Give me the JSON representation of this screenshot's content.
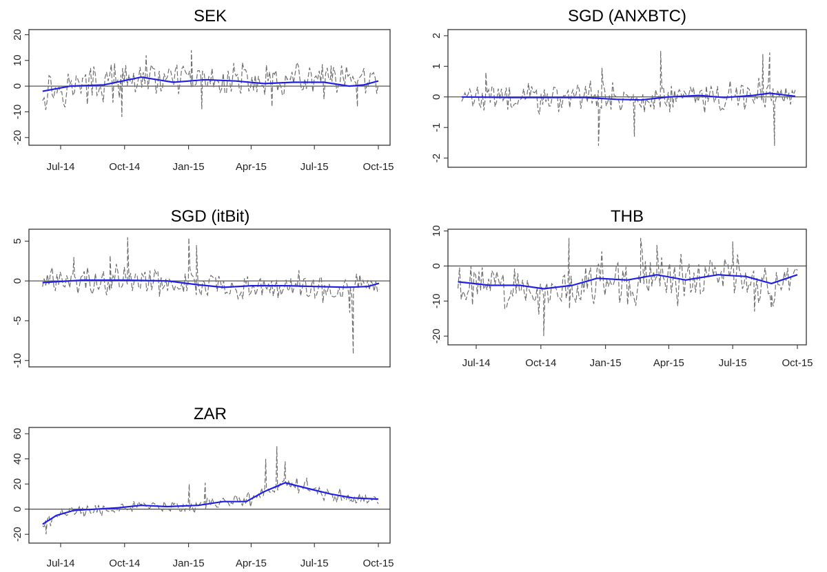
{
  "colors": {
    "raw_series": "#6e6e6e",
    "smoothed_series": "#1f1fe6",
    "zero_line": "#555555"
  },
  "chart_data": [
    {
      "type": "line",
      "title": "SEK",
      "x_ticks": [
        "Jul-14",
        "Oct-14",
        "Jan-15",
        "Apr-15",
        "Jul-15",
        "Oct-15"
      ],
      "y_ticks": [
        "-20",
        "-10",
        "0",
        "10",
        "20"
      ],
      "ylim": [
        -23,
        22
      ],
      "xlim": [
        "2014-06-01",
        "2015-10-05"
      ],
      "zero_line": true,
      "raw_range": {
        "start": "2014-06-05",
        "end": "2015-10-01",
        "amplitude": 5,
        "spikes": [
          [
            "2014-09-27",
            -12
          ],
          [
            "2014-11-01",
            12
          ],
          [
            "2015-01-05",
            14
          ],
          [
            "2015-01-20",
            -9
          ],
          [
            "2015-03-07",
            9
          ],
          [
            "2015-05-01",
            -8
          ],
          [
            "2015-09-01",
            -8
          ],
          [
            "2015-07-25",
            8
          ]
        ]
      },
      "smoothed": {
        "x": [
          "2014-06-05",
          "2014-07-15",
          "2014-09-01",
          "2014-10-25",
          "2014-12-10",
          "2015-01-25",
          "2015-03-10",
          "2015-04-20",
          "2015-06-01",
          "2015-07-15",
          "2015-08-20",
          "2015-09-10",
          "2015-10-01"
        ],
        "y": [
          -2,
          0,
          0.5,
          3.5,
          1.5,
          2.5,
          2,
          1,
          1.5,
          1.5,
          0,
          0.5,
          2
        ]
      }
    },
    {
      "type": "line",
      "title": "SGD (ANXBTC)",
      "x_ticks": [],
      "y_ticks": [
        "-2",
        "-1",
        "0",
        "1",
        "2"
      ],
      "ylim": [
        -2.3,
        2.2
      ],
      "xlim": [
        "2014-06-01",
        "2015-10-05"
      ],
      "zero_line": true,
      "raw_range": {
        "start": "2014-06-05",
        "end": "2015-10-01",
        "amplitude": 0.35,
        "spikes": [
          [
            "2014-07-10",
            0.8
          ],
          [
            "2014-12-25",
            0.95
          ],
          [
            "2014-12-20",
            -1.6
          ],
          [
            "2015-02-10",
            -1.3
          ],
          [
            "2015-03-20",
            1.5
          ],
          [
            "2015-08-25",
            1.45
          ],
          [
            "2015-09-01",
            -1.6
          ],
          [
            "2015-08-15",
            1.4
          ]
        ]
      },
      "smoothed": {
        "x": [
          "2014-06-05",
          "2014-08-15",
          "2014-10-15",
          "2014-12-01",
          "2015-01-15",
          "2015-02-20",
          "2015-04-01",
          "2015-05-15",
          "2015-06-20",
          "2015-08-01",
          "2015-08-25",
          "2015-10-01"
        ],
        "y": [
          0,
          -0.02,
          -0.02,
          -0.02,
          -0.08,
          -0.1,
          0,
          0.05,
          -0.02,
          0.05,
          0.12,
          0.02
        ]
      }
    },
    {
      "type": "line",
      "title": "SGD (itBit)",
      "x_ticks": [],
      "y_ticks": [
        "-10",
        "-5",
        "0",
        "5"
      ],
      "ylim": [
        -10.8,
        6.5
      ],
      "xlim": [
        "2014-06-01",
        "2015-10-05"
      ],
      "zero_line": true,
      "raw_range": {
        "start": "2014-06-05",
        "end": "2015-10-01",
        "amplitude": 1.3,
        "spikes": [
          [
            "2014-07-20",
            3
          ],
          [
            "2014-10-05",
            5.5
          ],
          [
            "2014-09-10",
            3.2
          ],
          [
            "2015-01-01",
            5.4
          ],
          [
            "2015-01-12",
            4.5
          ],
          [
            "2015-08-25",
            -9.2
          ],
          [
            "2015-08-20",
            -4
          ]
        ]
      },
      "smoothed": {
        "x": [
          "2014-06-05",
          "2014-08-01",
          "2014-10-01",
          "2014-12-01",
          "2015-01-15",
          "2015-02-20",
          "2015-04-01",
          "2015-05-20",
          "2015-07-01",
          "2015-08-15",
          "2015-09-15",
          "2015-10-01"
        ],
        "y": [
          -0.2,
          0.1,
          0.1,
          0,
          -0.5,
          -0.8,
          -0.6,
          -0.6,
          -0.7,
          -0.8,
          -0.7,
          -0.3
        ]
      }
    },
    {
      "type": "line",
      "title": "THB",
      "x_ticks": [
        "Jul-14",
        "Oct-14",
        "Jan-15",
        "Apr-15",
        "Jul-15",
        "Oct-15"
      ],
      "y_ticks": [
        "-20",
        "-10",
        "0",
        "10"
      ],
      "ylim": [
        -22.5,
        10.5
      ],
      "xlim": [
        "2014-06-01",
        "2015-10-05"
      ],
      "zero_line": true,
      "raw_range": {
        "start": "2014-06-05",
        "end": "2015-10-01",
        "amplitude": 5,
        "spikes": [
          [
            "2014-10-05",
            -20
          ],
          [
            "2014-11-10",
            8
          ],
          [
            "2015-02-20",
            8
          ],
          [
            "2015-03-15",
            6
          ],
          [
            "2015-07-01",
            7
          ],
          [
            "2015-08-01",
            -13
          ],
          [
            "2015-08-25",
            -12
          ]
        ]
      },
      "smoothed": {
        "x": [
          "2014-06-05",
          "2014-07-20",
          "2014-09-01",
          "2014-10-05",
          "2014-11-15",
          "2014-12-20",
          "2015-02-01",
          "2015-03-15",
          "2015-04-25",
          "2015-06-10",
          "2015-07-20",
          "2015-08-25",
          "2015-10-01"
        ],
        "y": [
          -4.5,
          -5.5,
          -5.5,
          -6.5,
          -5.5,
          -3.5,
          -4,
          -2.5,
          -4,
          -2.5,
          -3,
          -5,
          -2.5
        ]
      }
    },
    {
      "type": "line",
      "title": "ZAR",
      "x_ticks": [
        "Jul-14",
        "Oct-14",
        "Jan-15",
        "Apr-15",
        "Jul-15",
        "Oct-15"
      ],
      "y_ticks": [
        "-20",
        "0",
        "20",
        "40",
        "60"
      ],
      "ylim": [
        -27,
        65
      ],
      "xlim": [
        "2014-06-01",
        "2015-10-05"
      ],
      "zero_line": true,
      "raw_range": {
        "start": "2014-06-05",
        "end": "2015-10-01",
        "amplitude": 4,
        "spikes": [
          [
            "2014-06-10",
            -20
          ],
          [
            "2015-01-02",
            20
          ],
          [
            "2015-01-25",
            21
          ],
          [
            "2015-04-22",
            40
          ],
          [
            "2015-05-08",
            50
          ],
          [
            "2015-05-20",
            38
          ],
          [
            "2015-06-20",
            25
          ]
        ]
      },
      "smoothed": {
        "x": [
          "2014-06-05",
          "2014-06-25",
          "2014-07-20",
          "2014-08-20",
          "2014-09-20",
          "2014-10-25",
          "2014-12-01",
          "2015-01-15",
          "2015-02-20",
          "2015-03-25",
          "2015-04-20",
          "2015-05-20",
          "2015-06-25",
          "2015-07-25",
          "2015-08-25",
          "2015-10-01"
        ],
        "y": [
          -12,
          -5,
          -1,
          0,
          1,
          3,
          2,
          3,
          6,
          6,
          14,
          21,
          16,
          12,
          9,
          8
        ]
      }
    }
  ]
}
